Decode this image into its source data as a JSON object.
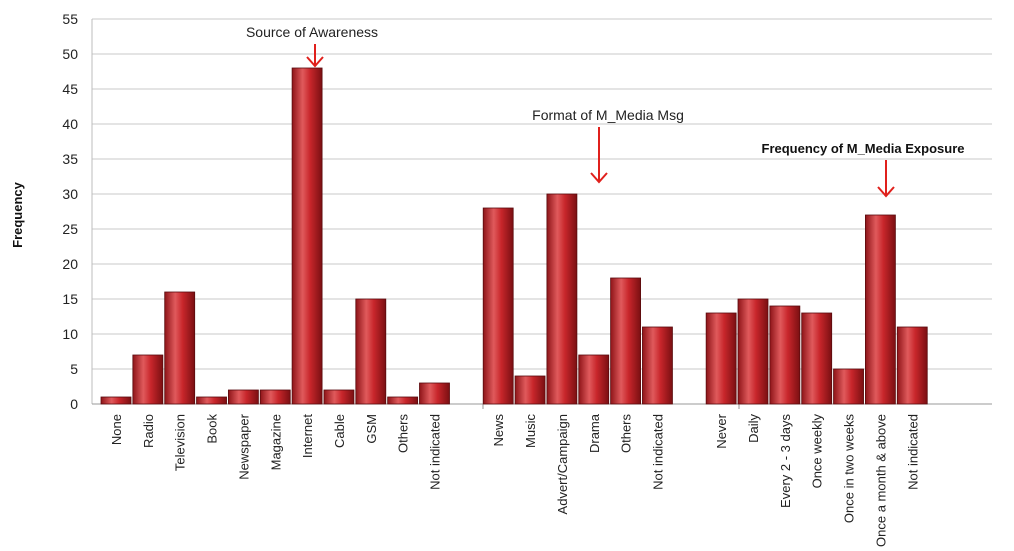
{
  "chart_data": {
    "type": "bar",
    "ylabel": "Frequency",
    "xlabel": "",
    "title": "",
    "ylim": [
      0,
      55
    ],
    "yticks": [
      0,
      5,
      10,
      15,
      20,
      25,
      30,
      35,
      40,
      45,
      50,
      55
    ],
    "grid": true,
    "bar_color": "#c0282d",
    "groups": [
      {
        "name": "Source of Awareness",
        "categories": [
          "None",
          "Radio",
          "Television",
          "Book",
          "Newspaper",
          "Magazine",
          "Internet",
          "Cable",
          "GSM",
          "Others",
          "Not indicated"
        ],
        "values": [
          1,
          7,
          16,
          1,
          2,
          2,
          48,
          2,
          15,
          1,
          3
        ]
      },
      {
        "name": "Format of M_Media Msg",
        "categories": [
          "News",
          "Music",
          "Advert/Campaign",
          "Drama",
          "Others",
          "Not indicated"
        ],
        "values": [
          28,
          4,
          30,
          7,
          18,
          11
        ]
      },
      {
        "name": "Frequency of M_Media Exposure",
        "categories": [
          "Never",
          "Daily",
          "Every 2 - 3 days",
          "Once weekly",
          "Once in two weeks",
          "Once a month & above",
          "Not indicated"
        ],
        "values": [
          13,
          15,
          14,
          13,
          5,
          27,
          11
        ]
      }
    ],
    "annotation_color": "#e0201c"
  }
}
